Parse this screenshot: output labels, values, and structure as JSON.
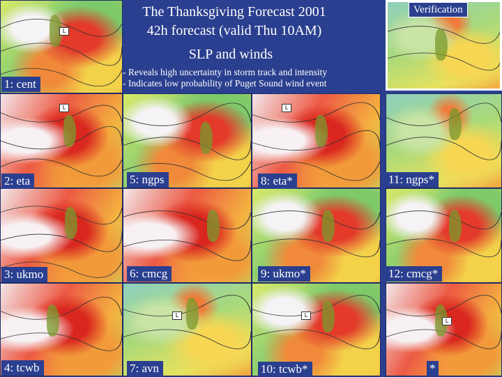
{
  "title": {
    "line1": "The Thanksgiving Forecast 2001",
    "line2": "42h forecast (valid Thu 10AM)",
    "line3": "SLP and winds"
  },
  "notes": [
    "- Reveals high uncertainty in storm track and intensity",
    "- Indicates low probability of Puget Sound wind event"
  ],
  "verification": {
    "label": "Verification"
  },
  "panels": [
    {
      "label": "1: cent"
    },
    {
      "label": "2: eta"
    },
    {
      "label": "3: ukmo"
    },
    {
      "label": "4: tcwb"
    },
    {
      "label": "5: ngps"
    },
    {
      "label": "6: cmcg"
    },
    {
      "label": "7: avn"
    },
    {
      "label": "8: eta*"
    },
    {
      "label": "9: ukmo*"
    },
    {
      "label": "10: tcwb*"
    },
    {
      "label": "11: ngps*"
    },
    {
      "label": "12: cmcg*"
    },
    {
      "label": "*"
    }
  ]
}
